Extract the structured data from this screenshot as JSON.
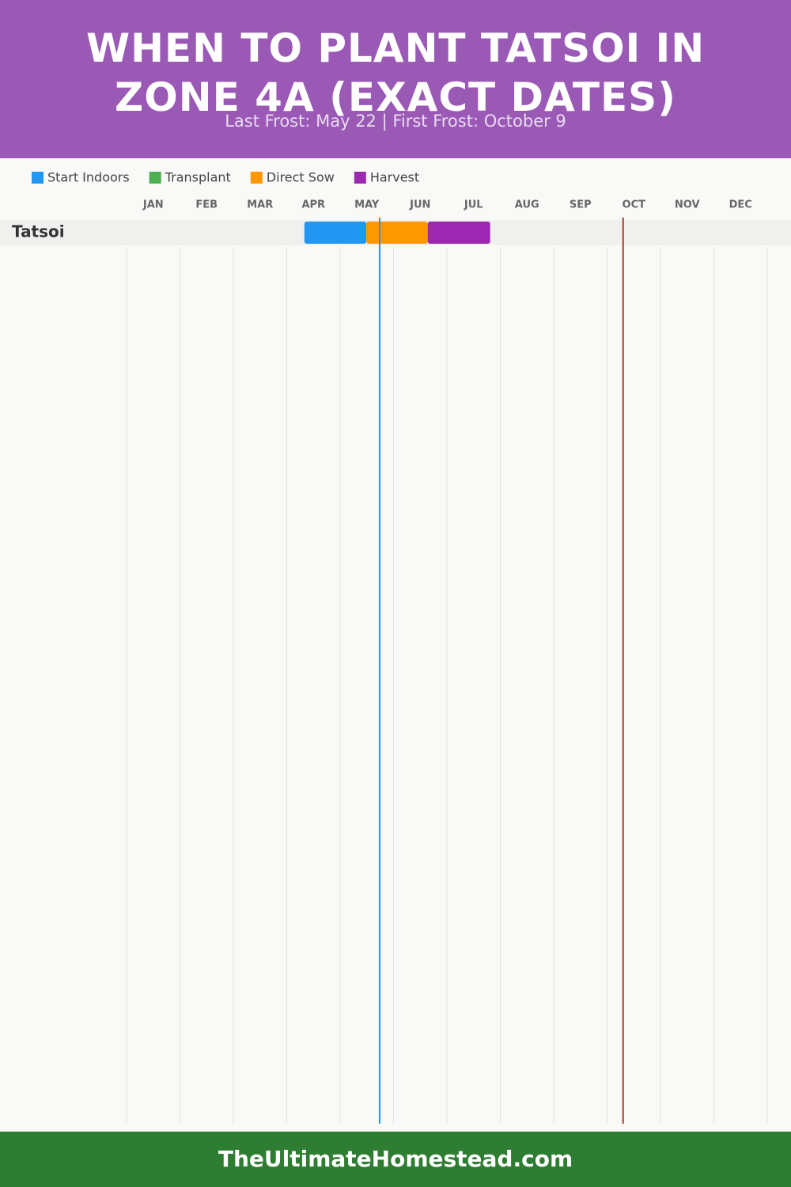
{
  "chart_data": {
    "type": "gantt",
    "title": "WHEN TO PLANT TATSOI IN ZONE 4A (EXACT DATES)",
    "subtitle": "Last Frost: May 22 | First Frost: October 9",
    "categories": [
      "Tatsoi"
    ],
    "series": [
      {
        "name": "Start Indoors",
        "color": "#2196f3",
        "values": [
          [
            3.33,
            4.49
          ]
        ]
      },
      {
        "name": "Transplant",
        "color": "#4caf50",
        "values": [
          null
        ]
      },
      {
        "name": "Direct Sow",
        "color": "#ff9800",
        "values": [
          [
            4.49,
            5.64
          ]
        ]
      },
      {
        "name": "Harvest",
        "color": "#9c27b0",
        "values": [
          [
            5.64,
            6.81
          ]
        ]
      }
    ],
    "xlim": [
      0,
      12
    ],
    "xticks": [
      {
        "value": 0.5,
        "label": "JAN"
      },
      {
        "value": 1.5,
        "label": "FEB"
      },
      {
        "value": 2.5,
        "label": "MAR"
      },
      {
        "value": 3.5,
        "label": "APR"
      },
      {
        "value": 4.5,
        "label": "MAY"
      },
      {
        "value": 5.5,
        "label": "JUN"
      },
      {
        "value": 6.5,
        "label": "JUL"
      },
      {
        "value": 7.5,
        "label": "AUG"
      },
      {
        "value": 8.5,
        "label": "SEP"
      },
      {
        "value": 9.5,
        "label": "OCT"
      },
      {
        "value": 10.5,
        "label": "NOV"
      },
      {
        "value": 11.5,
        "label": "DEC"
      }
    ],
    "frost_lines": [
      {
        "value": 4.74,
        "color": "#2196f3"
      },
      {
        "value": 9.3,
        "color": "#b03a2e"
      }
    ],
    "footer": "TheUltimateHomestead.com"
  }
}
